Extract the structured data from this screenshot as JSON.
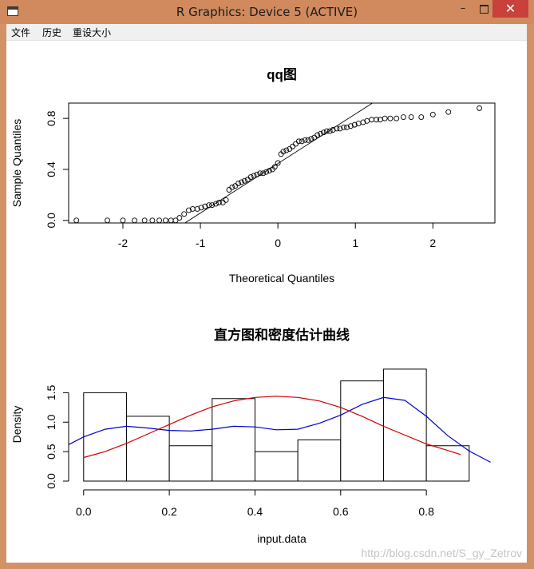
{
  "window": {
    "title": "R Graphics: Device 5 (ACTIVE)",
    "minimize_label": "–",
    "close_label": "✕"
  },
  "menu": {
    "items": [
      "文件",
      "历史",
      "重设大小"
    ]
  },
  "chart_data": [
    {
      "type": "scatter",
      "title": "qq图",
      "xlabel": "Theoretical Quantiles",
      "ylabel": "Sample Quantiles",
      "xticks": [
        "-2",
        "-1",
        "0",
        "1",
        "2"
      ],
      "yticks": [
        "0.0",
        "0.4",
        "0.8"
      ],
      "xlim": [
        -2.7,
        2.8
      ],
      "ylim": [
        -0.02,
        0.92
      ],
      "qqline": [
        [
          -1.2,
          -0.02
        ],
        [
          1.22,
          0.92
        ]
      ],
      "points": [
        [
          -2.6,
          0.0
        ],
        [
          -2.2,
          0.0
        ],
        [
          -2.0,
          0.0
        ],
        [
          -1.85,
          0.0
        ],
        [
          -1.72,
          0.0
        ],
        [
          -1.62,
          0.0
        ],
        [
          -1.53,
          0.0
        ],
        [
          -1.45,
          0.0
        ],
        [
          -1.38,
          0.0
        ],
        [
          -1.32,
          0.0
        ],
        [
          -1.27,
          0.02
        ],
        [
          -1.21,
          0.05
        ],
        [
          -1.15,
          0.08
        ],
        [
          -1.1,
          0.09
        ],
        [
          -1.04,
          0.09
        ],
        [
          -0.99,
          0.1
        ],
        [
          -0.94,
          0.11
        ],
        [
          -0.89,
          0.12
        ],
        [
          -0.85,
          0.12
        ],
        [
          -0.8,
          0.13
        ],
        [
          -0.76,
          0.14
        ],
        [
          -0.71,
          0.14
        ],
        [
          -0.67,
          0.16
        ],
        [
          -0.63,
          0.24
        ],
        [
          -0.59,
          0.26
        ],
        [
          -0.55,
          0.27
        ],
        [
          -0.51,
          0.29
        ],
        [
          -0.47,
          0.3
        ],
        [
          -0.43,
          0.31
        ],
        [
          -0.39,
          0.32
        ],
        [
          -0.35,
          0.34
        ],
        [
          -0.31,
          0.35
        ],
        [
          -0.27,
          0.36
        ],
        [
          -0.23,
          0.37
        ],
        [
          -0.19,
          0.37
        ],
        [
          -0.15,
          0.38
        ],
        [
          -0.11,
          0.39
        ],
        [
          -0.07,
          0.4
        ],
        [
          -0.04,
          0.42
        ],
        [
          0.0,
          0.45
        ],
        [
          0.04,
          0.52
        ],
        [
          0.07,
          0.54
        ],
        [
          0.11,
          0.55
        ],
        [
          0.15,
          0.56
        ],
        [
          0.19,
          0.58
        ],
        [
          0.23,
          0.6
        ],
        [
          0.27,
          0.62
        ],
        [
          0.31,
          0.62
        ],
        [
          0.35,
          0.63
        ],
        [
          0.39,
          0.63
        ],
        [
          0.43,
          0.64
        ],
        [
          0.47,
          0.65
        ],
        [
          0.51,
          0.67
        ],
        [
          0.55,
          0.68
        ],
        [
          0.59,
          0.69
        ],
        [
          0.63,
          0.7
        ],
        [
          0.67,
          0.7
        ],
        [
          0.71,
          0.71
        ],
        [
          0.76,
          0.72
        ],
        [
          0.8,
          0.72
        ],
        [
          0.85,
          0.73
        ],
        [
          0.89,
          0.73
        ],
        [
          0.94,
          0.74
        ],
        [
          0.99,
          0.75
        ],
        [
          1.04,
          0.76
        ],
        [
          1.1,
          0.77
        ],
        [
          1.15,
          0.78
        ],
        [
          1.21,
          0.79
        ],
        [
          1.27,
          0.79
        ],
        [
          1.32,
          0.79
        ],
        [
          1.38,
          0.8
        ],
        [
          1.45,
          0.8
        ],
        [
          1.53,
          0.8
        ],
        [
          1.62,
          0.81
        ],
        [
          1.72,
          0.81
        ],
        [
          1.85,
          0.81
        ],
        [
          2.0,
          0.83
        ],
        [
          2.2,
          0.85
        ],
        [
          2.6,
          0.88
        ]
      ]
    },
    {
      "type": "bar",
      "title": "直方图和密度估计曲线",
      "xlabel": "input.data",
      "ylabel": "Density",
      "xticks": [
        "0.0",
        "0.2",
        "0.4",
        "0.6",
        "0.8"
      ],
      "yticks": [
        "0.0",
        "0.5",
        "1.0",
        "1.5"
      ],
      "xlim": [
        -0.035,
        0.96
      ],
      "ylim": [
        0,
        1.98
      ],
      "bins": [
        {
          "from": 0.0,
          "to": 0.1,
          "density": 1.5
        },
        {
          "from": 0.1,
          "to": 0.2,
          "density": 1.1
        },
        {
          "from": 0.2,
          "to": 0.3,
          "density": 0.6
        },
        {
          "from": 0.3,
          "to": 0.4,
          "density": 1.4
        },
        {
          "from": 0.4,
          "to": 0.5,
          "density": 0.5
        },
        {
          "from": 0.5,
          "to": 0.6,
          "density": 0.7
        },
        {
          "from": 0.6,
          "to": 0.7,
          "density": 1.7
        },
        {
          "from": 0.7,
          "to": 0.8,
          "density": 1.9
        },
        {
          "from": 0.8,
          "to": 0.9,
          "density": 0.6
        }
      ],
      "series": [
        {
          "color": "#0000cc",
          "points": [
            [
              -0.035,
              0.62
            ],
            [
              0.0,
              0.75
            ],
            [
              0.05,
              0.88
            ],
            [
              0.1,
              0.93
            ],
            [
              0.15,
              0.9
            ],
            [
              0.2,
              0.86
            ],
            [
              0.25,
              0.85
            ],
            [
              0.3,
              0.88
            ],
            [
              0.35,
              0.93
            ],
            [
              0.4,
              0.92
            ],
            [
              0.45,
              0.87
            ],
            [
              0.5,
              0.88
            ],
            [
              0.55,
              0.98
            ],
            [
              0.6,
              1.12
            ],
            [
              0.65,
              1.3
            ],
            [
              0.7,
              1.42
            ],
            [
              0.75,
              1.37
            ],
            [
              0.8,
              1.1
            ],
            [
              0.85,
              0.77
            ],
            [
              0.9,
              0.51
            ],
            [
              0.95,
              0.32
            ]
          ]
        },
        {
          "color": "#cc0000",
          "points": [
            [
              0.0,
              0.4
            ],
            [
              0.05,
              0.5
            ],
            [
              0.1,
              0.64
            ],
            [
              0.15,
              0.8
            ],
            [
              0.2,
              0.96
            ],
            [
              0.25,
              1.12
            ],
            [
              0.3,
              1.26
            ],
            [
              0.35,
              1.36
            ],
            [
              0.4,
              1.42
            ],
            [
              0.45,
              1.44
            ],
            [
              0.5,
              1.42
            ],
            [
              0.55,
              1.36
            ],
            [
              0.6,
              1.25
            ],
            [
              0.65,
              1.1
            ],
            [
              0.7,
              0.93
            ],
            [
              0.75,
              0.78
            ],
            [
              0.8,
              0.63
            ],
            [
              0.85,
              0.52
            ],
            [
              0.88,
              0.45
            ]
          ]
        }
      ]
    }
  ],
  "watermark": "http://blog.csdn.net/S_gy_Zetrov"
}
